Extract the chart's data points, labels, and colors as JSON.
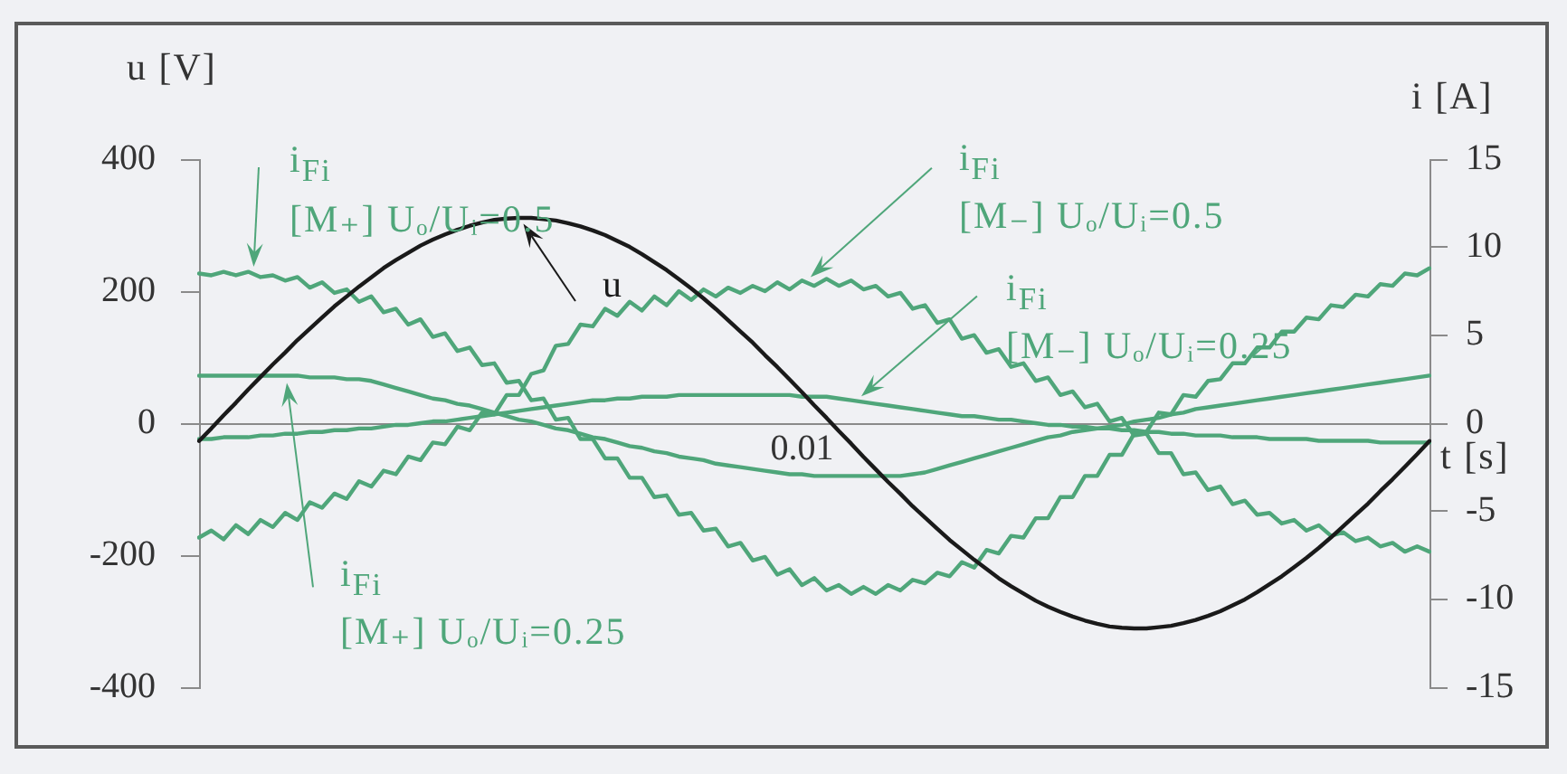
{
  "chart_data": {
    "type": "line",
    "xlabel": "t [s]",
    "ylabel": "u [V]",
    "y2label": "i [A]",
    "legend": "top",
    "categories": [
      null,
      null,
      null,
      null,
      null,
      null,
      null,
      null,
      null,
      null,
      null,
      null,
      null,
      null,
      null,
      null,
      null,
      null,
      null,
      null,
      null,
      null,
      null,
      null,
      null,
      null,
      null,
      null,
      null,
      null,
      null,
      null,
      null,
      null,
      null,
      null,
      null,
      null,
      null,
      null,
      null,
      null,
      null,
      null,
      null,
      null,
      null,
      null,
      null,
      null,
      null,
      null,
      null,
      null,
      null,
      null,
      null,
      null,
      null,
      null,
      null,
      null,
      null,
      null,
      null,
      null,
      null,
      null,
      null,
      null,
      null,
      null,
      null,
      null,
      null,
      null,
      null,
      null,
      null,
      null,
      null,
      null,
      null,
      null,
      null,
      null,
      null,
      null,
      null,
      null,
      null,
      null,
      null,
      null,
      null,
      null,
      null,
      null,
      null,
      null,
      null
    ],
    "annotations": [
      "0.01"
    ],
    "ylim": [
      -400,
      400
    ],
    "yticks": [
      -400,
      -200,
      0,
      200,
      400
    ],
    "y2lim": [
      -15,
      15
    ],
    "y2ticks": [
      -15,
      -10,
      -5,
      0,
      5,
      10,
      15
    ],
    "series": [
      {
        "name": "u",
        "color": "#1a1a1a",
        "values": [
          -27,
          -8,
          12,
          31,
          51,
          70,
          89,
          107,
          126,
          143,
          160,
          177,
          192,
          207,
          221,
          235,
          247,
          258,
          269,
          278,
          286,
          293,
          299,
          304,
          308,
          310,
          311,
          311,
          309,
          307,
          303,
          298,
          292,
          285,
          276,
          267,
          256,
          244,
          232,
          218,
          204,
          189,
          173,
          156,
          139,
          122,
          103,
          85,
          66,
          47,
          27,
          8,
          -12,
          -31,
          -51,
          -70,
          -89,
          -107,
          -126,
          -143,
          -160,
          -177,
          -192,
          -207,
          -221,
          -235,
          -247,
          -258,
          -269,
          -278,
          -286,
          -293,
          -299,
          -304,
          -308,
          -310,
          -311,
          -311,
          -309,
          -307,
          -303,
          -298,
          -292,
          -285,
          -276,
          -267,
          -256,
          -244,
          -232,
          -218,
          -204,
          -189,
          -173,
          -156,
          -139,
          -122,
          -103,
          -85,
          -66,
          -47,
          -27
        ]
      },
      {
        "name": "i$_{Fi}$ [M₊] Uₒ/Uᵢ=0.5",
        "color": "#4fa67a",
        "axis": "y2",
        "values": [
          8.5,
          8.4,
          8.6,
          8.4,
          8.6,
          8.3,
          8.4,
          8.1,
          8.3,
          7.7,
          8.0,
          7.4,
          7.6,
          6.9,
          7.2,
          6.3,
          6.5,
          5.6,
          5.9,
          4.9,
          5.1,
          4.1,
          4.3,
          3.3,
          3.4,
          2.3,
          2.4,
          1.3,
          1.4,
          0.2,
          0.3,
          -0.9,
          -0.9,
          -2.0,
          -2.0,
          -3.1,
          -3.1,
          -4.2,
          -4.1,
          -5.2,
          -5.1,
          -6.1,
          -6.0,
          -7.0,
          -6.8,
          -7.8,
          -7.6,
          -8.6,
          -8.3,
          -9.2,
          -8.8,
          -9.5,
          -9.2,
          -9.7,
          -9.3,
          -9.7,
          -9.2,
          -9.5,
          -8.9,
          -9.1,
          -8.5,
          -8.7,
          -7.9,
          -8.2,
          -7.2,
          -7.4,
          -6.4,
          -6.5,
          -5.4,
          -5.4,
          -4.2,
          -4.2,
          -3.0,
          -3.0,
          -1.8,
          -1.8,
          -0.6,
          -0.5,
          0.6,
          0.5,
          1.6,
          1.5,
          2.4,
          2.5,
          3.4,
          3.4,
          4.3,
          4.3,
          5.2,
          5.2,
          6.0,
          5.9,
          6.7,
          6.6,
          7.3,
          7.2,
          7.9,
          7.8,
          8.5,
          8.4,
          8.8
        ]
      },
      {
        "name": "i$_{Fi}$ [M₋] Uₒ/Uᵢ=0.5",
        "color": "#4fa67a",
        "axis": "y2",
        "values": [
          -6.5,
          -6.1,
          -6.6,
          -5.8,
          -6.3,
          -5.5,
          -5.9,
          -5.1,
          -5.5,
          -4.5,
          -4.8,
          -4.0,
          -4.3,
          -3.3,
          -3.6,
          -2.7,
          -2.9,
          -1.9,
          -2.1,
          -1.1,
          -1.2,
          -0.2,
          -0.4,
          0.6,
          0.5,
          1.6,
          1.6,
          2.8,
          3.0,
          4.4,
          4.5,
          5.6,
          5.5,
          6.5,
          6.1,
          6.9,
          6.4,
          7.2,
          6.7,
          7.5,
          7.0,
          7.6,
          7.2,
          7.7,
          7.4,
          7.8,
          7.5,
          8.0,
          7.6,
          8.1,
          7.8,
          8.2,
          7.8,
          8.1,
          7.6,
          7.8,
          7.2,
          7.4,
          6.5,
          6.7,
          5.7,
          5.9,
          4.8,
          5.0,
          4.0,
          4.2,
          3.2,
          3.4,
          2.4,
          2.6,
          1.6,
          1.8,
          0.9,
          1.1,
          0.1,
          0.3,
          -0.7,
          -0.6,
          -1.7,
          -1.7,
          -2.9,
          -2.8,
          -3.8,
          -3.6,
          -4.6,
          -4.4,
          -5.2,
          -5.1,
          -5.7,
          -5.5,
          -6.1,
          -5.8,
          -6.4,
          -6.2,
          -6.7,
          -6.5,
          -7.0,
          -6.8,
          -7.3,
          -7.0,
          -7.3
        ]
      },
      {
        "name": "i$_{Fi}$ [M₋] Uₒ/Uᵢ=0.25",
        "color": "#4fa67a",
        "axis": "y2",
        "values": [
          -0.9,
          -0.9,
          -0.8,
          -0.8,
          -0.8,
          -0.7,
          -0.7,
          -0.6,
          -0.6,
          -0.5,
          -0.5,
          -0.4,
          -0.4,
          -0.3,
          -0.3,
          -0.2,
          -0.1,
          -0.1,
          0.0,
          0.1,
          0.1,
          0.2,
          0.3,
          0.4,
          0.5,
          0.6,
          0.7,
          0.8,
          0.9,
          1.0,
          1.1,
          1.2,
          1.3,
          1.3,
          1.4,
          1.4,
          1.5,
          1.5,
          1.5,
          1.6,
          1.6,
          1.6,
          1.6,
          1.6,
          1.6,
          1.6,
          1.6,
          1.6,
          1.6,
          1.5,
          1.5,
          1.5,
          1.4,
          1.3,
          1.2,
          1.1,
          1.0,
          0.9,
          0.8,
          0.7,
          0.6,
          0.5,
          0.4,
          0.4,
          0.3,
          0.2,
          0.2,
          0.1,
          0.0,
          -0.1,
          -0.1,
          -0.2,
          -0.2,
          -0.3,
          -0.3,
          -0.4,
          -0.4,
          -0.5,
          -0.5,
          -0.6,
          -0.6,
          -0.7,
          -0.7,
          -0.7,
          -0.8,
          -0.8,
          -0.8,
          -0.9,
          -0.9,
          -0.9,
          -0.9,
          -1.0,
          -1.0,
          -1.0,
          -1.0,
          -1.0,
          -1.1,
          -1.1,
          -1.1,
          -1.1,
          -1.1
        ]
      },
      {
        "name": "i$_{Fi}$ [M₊] Uₒ/Uᵢ=0.25",
        "color": "#4fa67a",
        "axis": "y2",
        "values": [
          2.7,
          2.7,
          2.7,
          2.7,
          2.7,
          2.7,
          2.7,
          2.7,
          2.7,
          2.6,
          2.6,
          2.6,
          2.5,
          2.5,
          2.4,
          2.2,
          2.0,
          1.8,
          1.6,
          1.4,
          1.3,
          1.1,
          1.0,
          0.8,
          0.6,
          0.4,
          0.2,
          0.1,
          -0.1,
          -0.3,
          -0.4,
          -0.6,
          -0.8,
          -0.9,
          -1.1,
          -1.3,
          -1.4,
          -1.6,
          -1.7,
          -1.9,
          -2.0,
          -2.1,
          -2.3,
          -2.4,
          -2.5,
          -2.6,
          -2.7,
          -2.8,
          -2.9,
          -2.9,
          -3.0,
          -3.0,
          -3.0,
          -3.0,
          -3.0,
          -3.0,
          -3.0,
          -3.0,
          -2.9,
          -2.8,
          -2.6,
          -2.4,
          -2.2,
          -2.0,
          -1.8,
          -1.6,
          -1.4,
          -1.2,
          -1.0,
          -0.8,
          -0.7,
          -0.5,
          -0.4,
          -0.3,
          -0.2,
          -0.1,
          0.1,
          0.2,
          0.3,
          0.5,
          0.6,
          0.8,
          0.9,
          1.0,
          1.1,
          1.2,
          1.3,
          1.4,
          1.5,
          1.6,
          1.7,
          1.8,
          1.9,
          2.0,
          2.1,
          2.2,
          2.3,
          2.4,
          2.5,
          2.6,
          2.7
        ]
      }
    ]
  }
}
